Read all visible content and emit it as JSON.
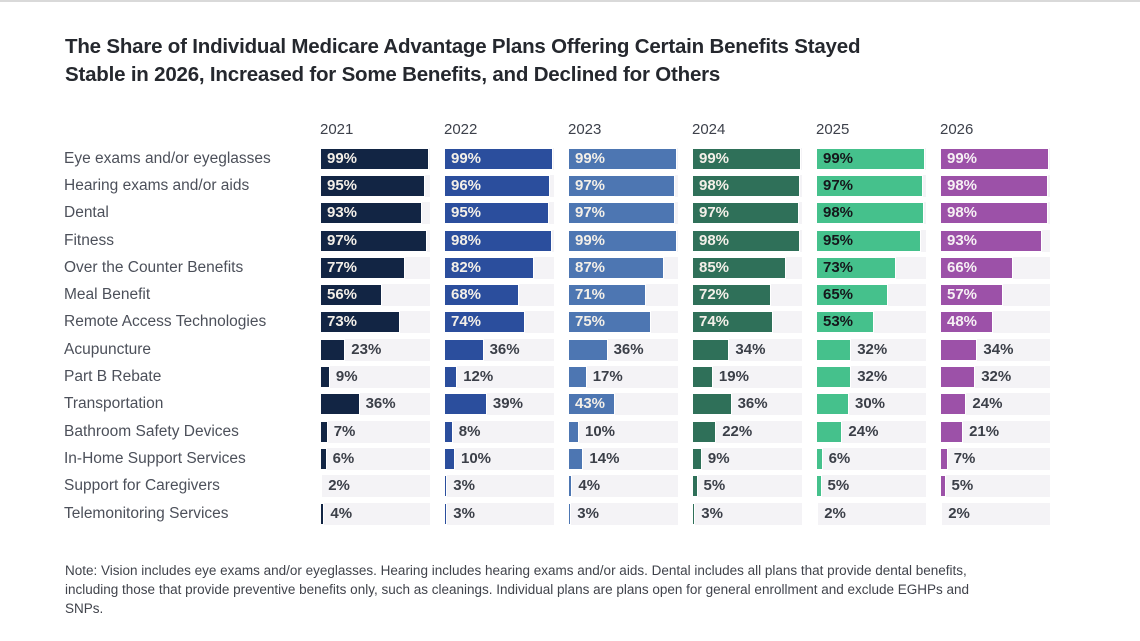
{
  "title": {
    "line1": "The Share of Individual Medicare Advantage Plans Offering Certain Benefits Stayed",
    "line2": "Stable in 2026, Increased for Some Benefits, and Declined for Others"
  },
  "note": "Note: Vision includes eye exams and/or eyeglasses. Hearing includes hearing exams and/or aids. Dental includes all plans that provide dental benefits, including those that provide preventive benefits only, such as cleanings. Individual plans are plans open for general enrollment and exclude EGHPs and SNPs.",
  "style": {
    "track_color": "#f4f3f6",
    "outside_label_color": "#3b3f48",
    "row_label_color": "#4c505a",
    "year_header_color": "#3d414b"
  },
  "chart_data": {
    "type": "bar",
    "orientation": "horizontal",
    "value_unit": "%",
    "xlim": [
      0,
      100
    ],
    "grid": false,
    "legend_position": "column headers (years above each bar group)",
    "label_placement_rule": "value label inside bar when >= 41, otherwise outside right of bar",
    "categories": [
      "Eye exams and/or eyeglasses",
      "Hearing exams and/or aids",
      "Dental",
      "Fitness",
      "Over the Counter Benefits",
      "Meal Benefit",
      "Remote Access Technologies",
      "Acupuncture",
      "Part B Rebate",
      "Transportation",
      "Bathroom Safety Devices",
      "In-Home Support Services",
      "Support for Caregivers",
      "Telemonitoring Services"
    ],
    "series": [
      {
        "name": "2021",
        "color": "#122544",
        "in_bar_label_color": "#f3efe8",
        "values": [
          99,
          95,
          93,
          97,
          77,
          56,
          73,
          23,
          9,
          36,
          7,
          6,
          2,
          4
        ]
      },
      {
        "name": "2022",
        "color": "#2b4e9d",
        "in_bar_label_color": "#f3efe8",
        "values": [
          99,
          96,
          95,
          98,
          82,
          68,
          74,
          36,
          12,
          39,
          8,
          10,
          3,
          3
        ]
      },
      {
        "name": "2023",
        "color": "#4d76b2",
        "in_bar_label_color": "#f3efe8",
        "values": [
          99,
          97,
          97,
          99,
          87,
          71,
          75,
          36,
          17,
          43,
          10,
          14,
          4,
          3
        ]
      },
      {
        "name": "2024",
        "color": "#2f7059",
        "in_bar_label_color": "#f3efe8",
        "values": [
          99,
          98,
          97,
          98,
          85,
          72,
          74,
          34,
          19,
          36,
          22,
          9,
          5,
          3
        ]
      },
      {
        "name": "2025",
        "color": "#45c18c",
        "in_bar_label_color": "#15171b",
        "values": [
          99,
          97,
          98,
          95,
          73,
          65,
          53,
          32,
          32,
          30,
          24,
          6,
          5,
          2
        ]
      },
      {
        "name": "2026",
        "color": "#9c51a8",
        "in_bar_label_color": "#f6f0f4",
        "values": [
          99,
          98,
          98,
          93,
          66,
          57,
          48,
          34,
          32,
          24,
          21,
          7,
          5,
          2
        ]
      }
    ]
  }
}
